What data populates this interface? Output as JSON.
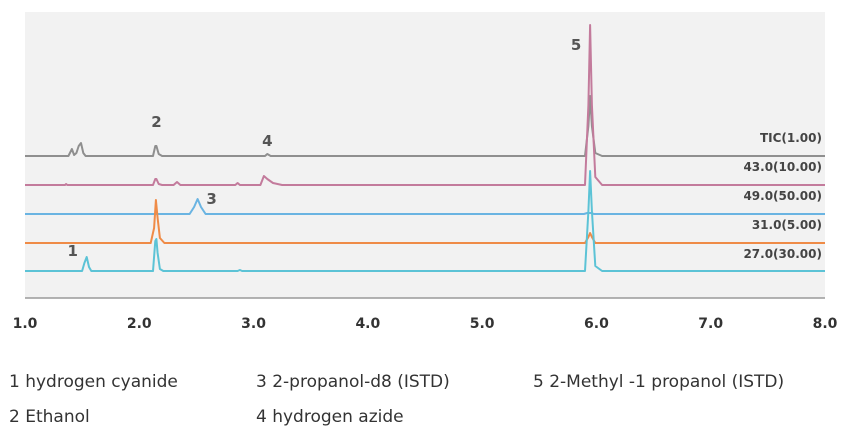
{
  "chart_data": {
    "type": "line",
    "title": "",
    "xlabel": "",
    "ylabel": "",
    "xlim": [
      1.0,
      8.0
    ],
    "x_ticks": [
      "1.0",
      "2.0",
      "3.0",
      "4.0",
      "5.0",
      "6.0",
      "7.0",
      "8.0"
    ],
    "grid": false,
    "series": [
      {
        "name": "TIC(1.00)",
        "color": "#8f8f8f",
        "baseline": 0,
        "points": [
          [
            1.0,
            0
          ],
          [
            1.38,
            0
          ],
          [
            1.41,
            7
          ],
          [
            1.43,
            1
          ],
          [
            1.45,
            3
          ],
          [
            1.47,
            10
          ],
          [
            1.49,
            13
          ],
          [
            1.51,
            3
          ],
          [
            1.53,
            0
          ],
          [
            2.12,
            0
          ],
          [
            2.14,
            10
          ],
          [
            2.15,
            10
          ],
          [
            2.17,
            2
          ],
          [
            2.2,
            0
          ],
          [
            3.1,
            0
          ],
          [
            3.12,
            2
          ],
          [
            3.15,
            0
          ],
          [
            5.9,
            0
          ],
          [
            5.93,
            30
          ],
          [
            5.945,
            60
          ],
          [
            5.96,
            30
          ],
          [
            5.99,
            3
          ],
          [
            6.05,
            0
          ],
          [
            8.0,
            0
          ]
        ]
      },
      {
        "name": "43.0(10.00)",
        "color": "#c37b9c",
        "baseline": 0,
        "points": [
          [
            1.0,
            0
          ],
          [
            1.35,
            0
          ],
          [
            1.36,
            1
          ],
          [
            1.37,
            0
          ],
          [
            2.12,
            0
          ],
          [
            2.14,
            6
          ],
          [
            2.15,
            6
          ],
          [
            2.17,
            1
          ],
          [
            2.2,
            0
          ],
          [
            2.3,
            0
          ],
          [
            2.33,
            3
          ],
          [
            2.36,
            0
          ],
          [
            2.84,
            0
          ],
          [
            2.86,
            2
          ],
          [
            2.88,
            0
          ],
          [
            3.06,
            0
          ],
          [
            3.09,
            9
          ],
          [
            3.12,
            6
          ],
          [
            3.17,
            2
          ],
          [
            3.25,
            0
          ],
          [
            5.9,
            0
          ],
          [
            5.93,
            80
          ],
          [
            5.945,
            160
          ],
          [
            5.96,
            80
          ],
          [
            5.99,
            8
          ],
          [
            6.05,
            0
          ],
          [
            8.0,
            0
          ]
        ]
      },
      {
        "name": "49.0(50.00)",
        "color": "#6ab4e2",
        "baseline": 0,
        "points": [
          [
            1.0,
            0
          ],
          [
            2.44,
            0
          ],
          [
            2.48,
            7
          ],
          [
            2.51,
            15
          ],
          [
            2.54,
            7
          ],
          [
            2.58,
            0
          ],
          [
            5.89,
            0
          ],
          [
            5.92,
            1
          ],
          [
            5.95,
            1
          ],
          [
            5.98,
            0
          ],
          [
            8.0,
            0
          ]
        ]
      },
      {
        "name": "31.0(5.00)",
        "color": "#ef8b47",
        "baseline": 0,
        "points": [
          [
            1.0,
            0
          ],
          [
            2.1,
            0
          ],
          [
            2.13,
            15
          ],
          [
            2.145,
            43
          ],
          [
            2.16,
            25
          ],
          [
            2.18,
            5
          ],
          [
            2.22,
            0
          ],
          [
            5.9,
            0
          ],
          [
            5.93,
            6
          ],
          [
            5.945,
            10
          ],
          [
            5.96,
            6
          ],
          [
            5.99,
            0
          ],
          [
            8.0,
            0
          ]
        ]
      },
      {
        "name": "27.0(30.00)",
        "color": "#5cc3d6",
        "baseline": 0,
        "points": [
          [
            1.0,
            0
          ],
          [
            1.5,
            0
          ],
          [
            1.52,
            8
          ],
          [
            1.54,
            14
          ],
          [
            1.56,
            4
          ],
          [
            1.58,
            0
          ],
          [
            2.12,
            0
          ],
          [
            2.14,
            30
          ],
          [
            2.15,
            32
          ],
          [
            2.16,
            18
          ],
          [
            2.18,
            2
          ],
          [
            2.21,
            0
          ],
          [
            2.86,
            0
          ],
          [
            2.88,
            1
          ],
          [
            2.9,
            0
          ],
          [
            5.9,
            0
          ],
          [
            5.93,
            60
          ],
          [
            5.945,
            100
          ],
          [
            5.96,
            60
          ],
          [
            5.99,
            5
          ],
          [
            6.05,
            0
          ],
          [
            8.0,
            0
          ]
        ]
      }
    ],
    "peak_labels": [
      {
        "text": "1",
        "x": 1.54
      },
      {
        "text": "2",
        "x": 2.15
      },
      {
        "text": "3",
        "x": 2.51
      },
      {
        "text": "4",
        "x": 3.12
      },
      {
        "text": "5",
        "x": 5.945
      }
    ]
  },
  "legend": {
    "col1": [
      "1 hydrogen cyanide",
      "2 Ethanol"
    ],
    "col2": [
      "3 2-propanol-d8 (ISTD)",
      "4 hydrogen azide"
    ],
    "col3": [
      "5 2-Methyl -1 propanol (ISTD)"
    ]
  },
  "colors": {
    "plot_background": "#f2f2f2",
    "axis": "#9a9a9a"
  }
}
